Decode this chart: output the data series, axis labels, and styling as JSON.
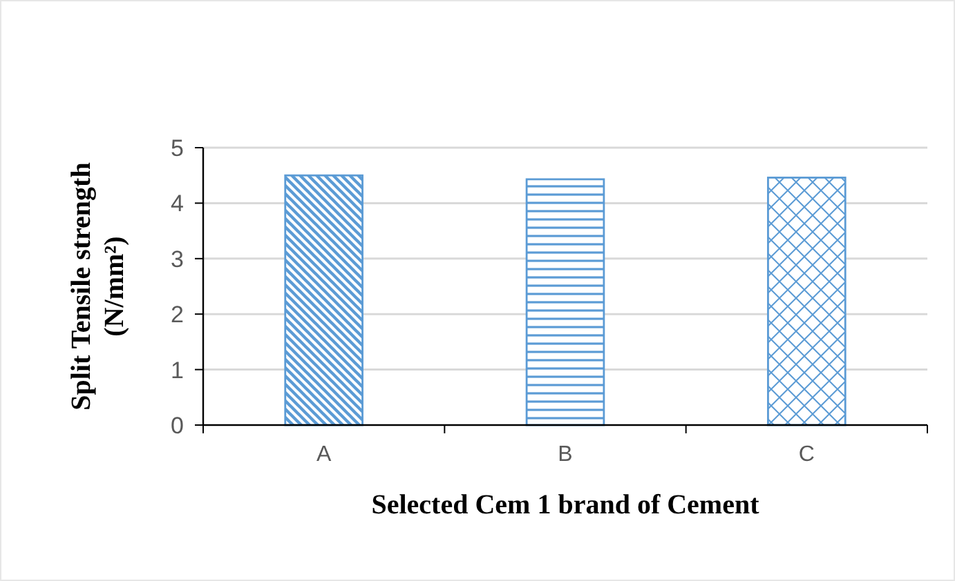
{
  "chart_data": {
    "type": "bar",
    "xlabel": "Selected Cem 1 brand of Cement",
    "ylabel": "Split  Tensile strength\n(N/mm²)",
    "categories": [
      "A",
      "B",
      "C"
    ],
    "values": [
      4.5,
      4.43,
      4.46
    ],
    "colors": [
      "#5b9bd5",
      "#5b9bd5",
      "#5b9bd5"
    ],
    "ylim": [
      0,
      5
    ],
    "yticks": [
      0,
      1,
      2,
      3,
      4,
      5
    ],
    "grid": "y"
  }
}
